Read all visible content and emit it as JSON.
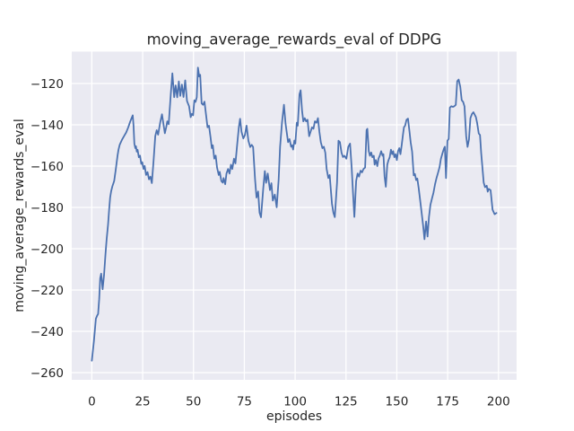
{
  "chart_data": {
    "type": "line",
    "title": "moving_average_rewards_eval of DDPG",
    "xlabel": "episodes",
    "ylabel": "moving_average_rewards_eval",
    "xlim": [
      -9.95,
      208.95
    ],
    "ylim": [
      -265.2,
      -104.7
    ],
    "grid": true,
    "legend_position": "none",
    "xticks": [
      {
        "v": 0,
        "label": "0"
      },
      {
        "v": 25,
        "label": "25"
      },
      {
        "v": 50,
        "label": "50"
      },
      {
        "v": 75,
        "label": "75"
      },
      {
        "v": 100,
        "label": "100"
      },
      {
        "v": 125,
        "label": "125"
      },
      {
        "v": 150,
        "label": "150"
      },
      {
        "v": 175,
        "label": "175"
      },
      {
        "v": 200,
        "label": "200"
      }
    ],
    "yticks": [
      {
        "v": -120,
        "label": "−120"
      },
      {
        "v": -140,
        "label": "−140"
      },
      {
        "v": -160,
        "label": "−160"
      },
      {
        "v": -180,
        "label": "−180"
      },
      {
        "v": -200,
        "label": "−200"
      },
      {
        "v": -220,
        "label": "−220"
      },
      {
        "v": -240,
        "label": "−240"
      },
      {
        "v": -260,
        "label": "−260"
      }
    ],
    "style": {
      "figure_bg": "#ffffff",
      "axes_bg": "#eaeaf2",
      "grid_color": "#ffffff",
      "text_color": "#262626",
      "line_color": "#4c72b0",
      "line_width": 1.8
    },
    "series": [
      {
        "name": "moving_average_rewards_eval",
        "color": "#4c72b0",
        "points": [
          [
            0,
            -254.2
          ],
          [
            1,
            -244.8
          ],
          [
            2,
            -233.9
          ],
          [
            2.6,
            -232.4
          ],
          [
            3.1,
            -231.6
          ],
          [
            3.6,
            -224.4
          ],
          [
            4.1,
            -214.3
          ],
          [
            4.6,
            -212.1
          ],
          [
            5.3,
            -219.6
          ],
          [
            6,
            -212.8
          ],
          [
            6.7,
            -202.7
          ],
          [
            7.3,
            -195.5
          ],
          [
            8,
            -188.2
          ],
          [
            8.5,
            -181
          ],
          [
            9,
            -175.2
          ],
          [
            9.5,
            -172.2
          ],
          [
            10.1,
            -169.8
          ],
          [
            11,
            -167.2
          ],
          [
            11.7,
            -162.2
          ],
          [
            12.6,
            -155.1
          ],
          [
            13.1,
            -152.1
          ],
          [
            13.7,
            -149.6
          ],
          [
            14.9,
            -147.1
          ],
          [
            15.9,
            -145.4
          ],
          [
            16.9,
            -143.7
          ],
          [
            17.9,
            -141.2
          ],
          [
            18.9,
            -138.4
          ],
          [
            19.5,
            -136.9
          ],
          [
            20.1,
            -135.4
          ],
          [
            20.5,
            -140.4
          ],
          [
            20.9,
            -149.1
          ],
          [
            21.4,
            -151.3
          ],
          [
            21.7,
            -150.4
          ],
          [
            22.1,
            -153
          ],
          [
            22.5,
            -152.1
          ],
          [
            23.1,
            -155.7
          ],
          [
            23.7,
            -154.9
          ],
          [
            24.3,
            -158.9
          ],
          [
            24.8,
            -158.1
          ],
          [
            25.4,
            -161.4
          ],
          [
            26,
            -159.9
          ],
          [
            26.7,
            -164.3
          ],
          [
            27.4,
            -162.9
          ],
          [
            28.1,
            -166.4
          ],
          [
            28.8,
            -165.1
          ],
          [
            29.5,
            -168.2
          ],
          [
            30.4,
            -157
          ],
          [
            31.2,
            -145.5
          ],
          [
            31.9,
            -142.6
          ],
          [
            32.6,
            -144.8
          ],
          [
            33.6,
            -138.9
          ],
          [
            34.5,
            -134.9
          ],
          [
            35.9,
            -144.1
          ],
          [
            36.6,
            -141
          ],
          [
            37.1,
            -138.3
          ],
          [
            37.8,
            -139.7
          ],
          [
            38.8,
            -125.2
          ],
          [
            39.6,
            -115.1
          ],
          [
            40.5,
            -126.6
          ],
          [
            41.2,
            -120.9
          ],
          [
            42,
            -126.7
          ],
          [
            42.8,
            -119
          ],
          [
            43.5,
            -126
          ],
          [
            44.3,
            -120.5
          ],
          [
            45.1,
            -126.5
          ],
          [
            45.9,
            -118.5
          ],
          [
            46.8,
            -128.5
          ],
          [
            47.8,
            -131
          ],
          [
            48.6,
            -136.3
          ],
          [
            49.2,
            -134.7
          ],
          [
            49.8,
            -135.4
          ],
          [
            50.4,
            -128.1
          ],
          [
            51,
            -128.9
          ],
          [
            51.6,
            -126.7
          ],
          [
            52.2,
            -112.3
          ],
          [
            52.8,
            -116.6
          ],
          [
            53.3,
            -115.8
          ],
          [
            54,
            -129.6
          ],
          [
            54.7,
            -130.3
          ],
          [
            55.4,
            -128.8
          ],
          [
            56.2,
            -135.4
          ],
          [
            56.9,
            -141.2
          ],
          [
            57.6,
            -140.4
          ],
          [
            58.3,
            -145.5
          ],
          [
            59,
            -151.3
          ],
          [
            59.5,
            -149.9
          ],
          [
            60.2,
            -156.4
          ],
          [
            60.9,
            -154.9
          ],
          [
            61.6,
            -160.7
          ],
          [
            62.4,
            -164.3
          ],
          [
            62.9,
            -162.8
          ],
          [
            63.7,
            -167.2
          ],
          [
            64.4,
            -168
          ],
          [
            64.8,
            -165.8
          ],
          [
            65.6,
            -168.8
          ],
          [
            66.2,
            -163.6
          ],
          [
            67,
            -161.4
          ],
          [
            67.7,
            -163.6
          ],
          [
            68.4,
            -159.3
          ],
          [
            69.1,
            -161.4
          ],
          [
            69.9,
            -156.4
          ],
          [
            70.6,
            -158.7
          ],
          [
            71.6,
            -148.4
          ],
          [
            72.3,
            -141.2
          ],
          [
            72.9,
            -137.1
          ],
          [
            73.6,
            -143.4
          ],
          [
            74.5,
            -146.6
          ],
          [
            75.3,
            -144.9
          ],
          [
            76.1,
            -140.4
          ],
          [
            77,
            -147.8
          ],
          [
            77.9,
            -150.8
          ],
          [
            78.6,
            -149.7
          ],
          [
            79.3,
            -150.7
          ],
          [
            80.3,
            -166.5
          ],
          [
            81,
            -175.2
          ],
          [
            81.8,
            -172.3
          ],
          [
            82.5,
            -182.5
          ],
          [
            83.2,
            -184.8
          ],
          [
            84.3,
            -170.9
          ],
          [
            85.1,
            -162.4
          ],
          [
            85.7,
            -168.1
          ],
          [
            86.5,
            -163.6
          ],
          [
            87.6,
            -171.6
          ],
          [
            88.3,
            -168.3
          ],
          [
            89,
            -176.7
          ],
          [
            90,
            -173.8
          ],
          [
            90.9,
            -179.9
          ],
          [
            91.9,
            -166.5
          ],
          [
            92.6,
            -150.6
          ],
          [
            93.5,
            -139
          ],
          [
            94.5,
            -130.3
          ],
          [
            95.3,
            -139.5
          ],
          [
            95.8,
            -143.3
          ],
          [
            96.5,
            -148.4
          ],
          [
            97.2,
            -146.9
          ],
          [
            98,
            -150.6
          ],
          [
            98.5,
            -149.9
          ],
          [
            99,
            -152
          ],
          [
            99.6,
            -147.6
          ],
          [
            100.1,
            -149.1
          ],
          [
            100.8,
            -139
          ],
          [
            101.3,
            -140.4
          ],
          [
            102.1,
            -125.2
          ],
          [
            102.7,
            -123.3
          ],
          [
            103.4,
            -133.2
          ],
          [
            104,
            -138.3
          ],
          [
            104.7,
            -136.8
          ],
          [
            105.4,
            -138.3
          ],
          [
            106.1,
            -137.5
          ],
          [
            106.9,
            -145.5
          ],
          [
            107.6,
            -143.3
          ],
          [
            108.3,
            -141.2
          ],
          [
            109,
            -141.9
          ],
          [
            109.7,
            -138.3
          ],
          [
            110.5,
            -139
          ],
          [
            111.2,
            -136.8
          ],
          [
            111.9,
            -143.3
          ],
          [
            112.6,
            -148.4
          ],
          [
            113.4,
            -151.3
          ],
          [
            114.1,
            -150.6
          ],
          [
            114.8,
            -153.5
          ],
          [
            115.5,
            -161.4
          ],
          [
            116.3,
            -165.8
          ],
          [
            117,
            -164.3
          ],
          [
            117.4,
            -169.4
          ],
          [
            118.1,
            -178.1
          ],
          [
            118.8,
            -182.5
          ],
          [
            119.5,
            -184.7
          ],
          [
            120.6,
            -168
          ],
          [
            121.3,
            -147.7
          ],
          [
            122,
            -148.4
          ],
          [
            122.8,
            -153.5
          ],
          [
            123.5,
            -155.6
          ],
          [
            124.2,
            -155
          ],
          [
            125.2,
            -156.4
          ],
          [
            126.1,
            -150.7
          ],
          [
            127,
            -149.1
          ],
          [
            127.8,
            -160.7
          ],
          [
            128.5,
            -173.8
          ],
          [
            129.1,
            -184.6
          ],
          [
            130,
            -167.2
          ],
          [
            130.7,
            -163.6
          ],
          [
            131.4,
            -165.1
          ],
          [
            132.2,
            -162.2
          ],
          [
            132.9,
            -163
          ],
          [
            133.6,
            -161.4
          ],
          [
            134.4,
            -160.7
          ],
          [
            135.1,
            -142.6
          ],
          [
            135.5,
            -141.9
          ],
          [
            136.2,
            -152.8
          ],
          [
            136.8,
            -155
          ],
          [
            137.4,
            -153.4
          ],
          [
            138,
            -155.7
          ],
          [
            138.7,
            -155
          ],
          [
            139.1,
            -159.3
          ],
          [
            139.7,
            -157.1
          ],
          [
            140.4,
            -160
          ],
          [
            141,
            -156.4
          ],
          [
            141.6,
            -155
          ],
          [
            142.3,
            -152.8
          ],
          [
            143,
            -155
          ],
          [
            143.4,
            -154.2
          ],
          [
            144,
            -165.1
          ],
          [
            144.6,
            -170
          ],
          [
            145.3,
            -159.3
          ],
          [
            145.9,
            -157.1
          ],
          [
            146.5,
            -155.7
          ],
          [
            147.1,
            -152
          ],
          [
            147.7,
            -154.2
          ],
          [
            148.2,
            -152.8
          ],
          [
            148.8,
            -155.7
          ],
          [
            149.4,
            -154.2
          ],
          [
            150,
            -157.1
          ],
          [
            150.6,
            -152.8
          ],
          [
            151.2,
            -151.3
          ],
          [
            151.8,
            -154.2
          ],
          [
            152.4,
            -149.8
          ],
          [
            153,
            -144.8
          ],
          [
            153.5,
            -141.2
          ],
          [
            154.1,
            -140.4
          ],
          [
            154.8,
            -137.5
          ],
          [
            155.5,
            -137
          ],
          [
            156.2,
            -143
          ],
          [
            156.8,
            -148.5
          ],
          [
            157.5,
            -153
          ],
          [
            158.3,
            -164.5
          ],
          [
            158.9,
            -163.8
          ],
          [
            159.5,
            -166.8
          ],
          [
            160.1,
            -166
          ],
          [
            160.8,
            -170.9
          ],
          [
            161.5,
            -176.7
          ],
          [
            162.2,
            -182.5
          ],
          [
            162.9,
            -188.5
          ],
          [
            163.6,
            -195.4
          ],
          [
            164.4,
            -186.8
          ],
          [
            165.1,
            -194.1
          ],
          [
            165.8,
            -184.6
          ],
          [
            166.5,
            -178.8
          ],
          [
            167.3,
            -175.6
          ],
          [
            168,
            -172.9
          ],
          [
            168.8,
            -168.7
          ],
          [
            169.5,
            -165.8
          ],
          [
            170.2,
            -163.5
          ],
          [
            171,
            -160.5
          ],
          [
            171.7,
            -156.5
          ],
          [
            172.4,
            -154
          ],
          [
            173.2,
            -151.5
          ],
          [
            173.6,
            -150.6
          ],
          [
            174.2,
            -165.8
          ],
          [
            174.9,
            -147.7
          ],
          [
            175.5,
            -146.8
          ],
          [
            176.1,
            -131.7
          ],
          [
            176.8,
            -131
          ],
          [
            177.6,
            -131.3
          ],
          [
            178.3,
            -131
          ],
          [
            179,
            -130.3
          ],
          [
            179.7,
            -118.9
          ],
          [
            180.4,
            -118.1
          ],
          [
            181.2,
            -121.6
          ],
          [
            181.9,
            -128.1
          ],
          [
            182.6,
            -128.9
          ],
          [
            183.3,
            -131.1
          ],
          [
            184.1,
            -145.5
          ],
          [
            184.8,
            -150.7
          ],
          [
            185.5,
            -147.1
          ],
          [
            186.2,
            -136.8
          ],
          [
            187,
            -134.7
          ],
          [
            187.7,
            -133.9
          ],
          [
            188.9,
            -136.2
          ],
          [
            189.5,
            -139.1
          ],
          [
            190.3,
            -144.2
          ],
          [
            190.9,
            -144.9
          ],
          [
            191.5,
            -153.6
          ],
          [
            192.7,
            -167.9
          ],
          [
            193.4,
            -170.2
          ],
          [
            194.2,
            -169.5
          ],
          [
            194.7,
            -172.4
          ],
          [
            195.2,
            -171
          ],
          [
            196.1,
            -171.7
          ],
          [
            197.1,
            -181.1
          ],
          [
            198.1,
            -183.3
          ],
          [
            199,
            -182.7
          ]
        ]
      }
    ]
  }
}
